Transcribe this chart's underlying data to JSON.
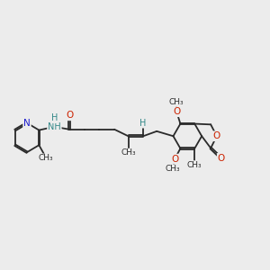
{
  "bg_color": "#ececec",
  "bond_color": "#2a2a2a",
  "N_color": "#1a1acc",
  "O_color": "#cc2200",
  "NH_color": "#338888",
  "H_color": "#338888",
  "C_color": "#2a2a2a",
  "lw": 1.3,
  "xlim": [
    0.0,
    7.2
  ],
  "ylim": [
    0.2,
    2.8
  ]
}
